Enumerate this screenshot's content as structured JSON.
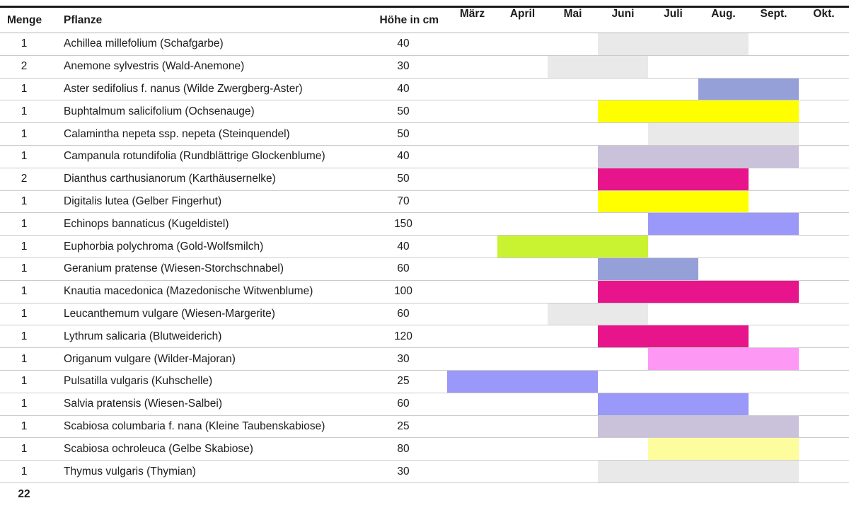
{
  "header": {
    "menge": "Menge",
    "pflanze": "Pflanze",
    "hoehe": "Höhe in cm"
  },
  "footer": {
    "total": "22"
  },
  "palette": {
    "inactive_gray": "#e9e9e9",
    "periwinkle_muted": "#95a0d9",
    "periwinkle_bright": "#9a98f8",
    "yellow": "#ffff00",
    "pale_yellow": "#fdfd9e",
    "lavender": "#cac1db",
    "magenta": "#e8148c",
    "chartreuse": "#c9f231",
    "pink": "#fd98f4",
    "top_border": "#1a1a1a",
    "separator": "#cbcbcb"
  },
  "chart_data": {
    "type": "table",
    "title": "Pflanzliste mit Blühkalender (Gantt, März–Okt.)",
    "months": [
      "März",
      "April",
      "Mai",
      "Juni",
      "Juli",
      "Aug.",
      "Sept.",
      "Okt."
    ],
    "total_menge": 22,
    "rows": [
      {
        "menge": "1",
        "pflanze": "Achillea millefolium (Schafgarbe)",
        "hoehe_cm": "40",
        "bloom_start": "Juni",
        "bloom_end": "Aug.",
        "bar_color": "#e9e9e9"
      },
      {
        "menge": "2",
        "pflanze": "Anemone sylvestris (Wald-Anemone)",
        "hoehe_cm": "30",
        "bloom_start": "Mai",
        "bloom_end": "Juni",
        "bar_color": "#e9e9e9"
      },
      {
        "menge": "1",
        "pflanze": "Aster sedifolius f. nanus (Wilde Zwergberg-Aster)",
        "hoehe_cm": "40",
        "bloom_start": "Aug.",
        "bloom_end": "Sept.",
        "bar_color": "#95a0d9"
      },
      {
        "menge": "1",
        "pflanze": "Buphtalmum salicifolium (Ochsenauge)",
        "hoehe_cm": "50",
        "bloom_start": "Juni",
        "bloom_end": "Sept.",
        "bar_color": "#ffff00"
      },
      {
        "menge": "1",
        "pflanze": "Calamintha nepeta ssp. nepeta (Steinquendel)",
        "hoehe_cm": "50",
        "bloom_start": "Juli",
        "bloom_end": "Sept.",
        "bar_color": "#e9e9e9"
      },
      {
        "menge": "1",
        "pflanze": "Campanula rotundifolia (Rundblättrige Glockenblume)",
        "hoehe_cm": "40",
        "bloom_start": "Juni",
        "bloom_end": "Sept.",
        "bar_color": "#cac1db"
      },
      {
        "menge": "2",
        "pflanze": "Dianthus carthusianorum (Karthäusernelke)",
        "hoehe_cm": "50",
        "bloom_start": "Juni",
        "bloom_end": "Aug.",
        "bar_color": "#e8148c"
      },
      {
        "menge": "1",
        "pflanze": "Digitalis lutea (Gelber Fingerhut)",
        "hoehe_cm": "70",
        "bloom_start": "Juni",
        "bloom_end": "Aug.",
        "bar_color": "#ffff00"
      },
      {
        "menge": "1",
        "pflanze": "Echinops bannaticus (Kugeldistel)",
        "hoehe_cm": "150",
        "bloom_start": "Juli",
        "bloom_end": "Sept.",
        "bar_color": "#9a98f8"
      },
      {
        "menge": "1",
        "pflanze": "Euphorbia polychroma (Gold-Wolfsmilch)",
        "hoehe_cm": "40",
        "bloom_start": "April",
        "bloom_end": "Juni",
        "bar_color": "#c9f231"
      },
      {
        "menge": "1",
        "pflanze": "Geranium pratense (Wiesen-Storchschnabel)",
        "hoehe_cm": "60",
        "bloom_start": "Juni",
        "bloom_end": "Juli",
        "bar_color": "#95a0d9"
      },
      {
        "menge": "1",
        "pflanze": "Knautia macedonica (Mazedonische Witwenblume)",
        "hoehe_cm": "100",
        "bloom_start": "Juni",
        "bloom_end": "Sept.",
        "bar_color": "#e8148c"
      },
      {
        "menge": "1",
        "pflanze": "Leucanthemum vulgare (Wiesen-Margerite)",
        "hoehe_cm": "60",
        "bloom_start": "Mai",
        "bloom_end": "Juni",
        "bar_color": "#e9e9e9"
      },
      {
        "menge": "1",
        "pflanze": "Lythrum salicaria  (Blutweiderich)",
        "hoehe_cm": "120",
        "bloom_start": "Juni",
        "bloom_end": "Aug.",
        "bar_color": "#e8148c"
      },
      {
        "menge": "1",
        "pflanze": "Origanum vulgare (Wilder-Majoran)",
        "hoehe_cm": "30",
        "bloom_start": "Juli",
        "bloom_end": "Sept.",
        "bar_color": "#fd98f4"
      },
      {
        "menge": "1",
        "pflanze": "Pulsatilla vulgaris (Kuhschelle)",
        "hoehe_cm": "25",
        "bloom_start": "März",
        "bloom_end": "Mai",
        "bar_color": "#9a98f8"
      },
      {
        "menge": "1",
        "pflanze": "Salvia pratensis (Wiesen-Salbei)",
        "hoehe_cm": "60",
        "bloom_start": "Juni",
        "bloom_end": "Aug.",
        "bar_color": "#9a98f8"
      },
      {
        "menge": "1",
        "pflanze": "Scabiosa columbaria f. nana (Kleine Taubenskabiose)",
        "hoehe_cm": "25",
        "bloom_start": "Juni",
        "bloom_end": "Sept.",
        "bar_color": "#cac1db"
      },
      {
        "menge": "1",
        "pflanze": "Scabiosa ochroleuca (Gelbe Skabiose)",
        "hoehe_cm": "80",
        "bloom_start": "Juli",
        "bloom_end": "Sept.",
        "bar_color": "#fdfd9e"
      },
      {
        "menge": "1",
        "pflanze": "Thymus vulgaris (Thymian)",
        "hoehe_cm": "30",
        "bloom_start": "Juni",
        "bloom_end": "Sept.",
        "bar_color": "#e9e9e9"
      }
    ]
  }
}
